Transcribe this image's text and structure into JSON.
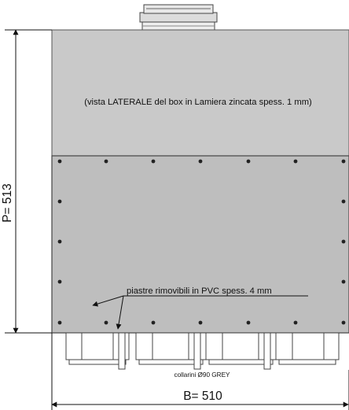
{
  "annotations": {
    "side_view": "(vista LATERALE del box in Lamiera zincata spess. 1 mm)",
    "panels": "piastre rimovibili in PVC spess. 4 mm",
    "collars": "collarini Ø90 GREY"
  },
  "dimensions": {
    "height": "P= 513",
    "width": "B= 510"
  },
  "colors": {
    "box_upper": "#c9c9c9",
    "panel": "#bdbdbd",
    "outline": "#555555",
    "rivet": "#222222",
    "collar_fill": "#ffffff"
  }
}
